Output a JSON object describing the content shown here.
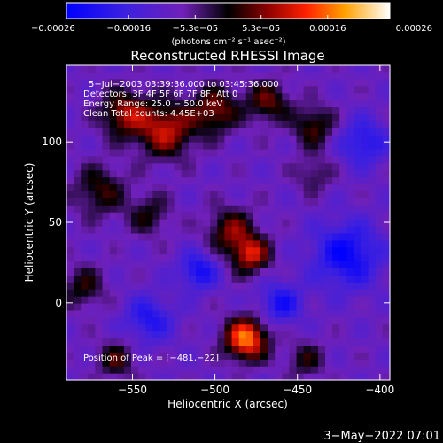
{
  "chart_data": {
    "type": "heatmap",
    "title": "Reconstructed RHESSI Image",
    "xlabel": "Heliocentric X (arcsec)",
    "ylabel": "Heliocentric Y (arcsec)",
    "xlim": [
      -590,
      -394
    ],
    "ylim": [
      -48,
      148
    ],
    "xticks": [
      -550,
      -500,
      -450,
      -400
    ],
    "xtick_labels": [
      "−550",
      "−500",
      "−450",
      "−400"
    ],
    "yticks": [
      0,
      50,
      100
    ],
    "ytick_labels": [
      "0",
      "50",
      "100"
    ],
    "colorbar": {
      "range": [
        -0.00026,
        0.00026
      ],
      "ticks": [
        -0.00026,
        -0.00016,
        -5.3e-05,
        5.3e-05,
        0.00016,
        0.00026
      ],
      "tick_labels": [
        "−0.00026",
        "−0.00016",
        "−5.3e−05",
        "5.3e−05",
        "0.00016",
        "0.00026"
      ],
      "unit_label": "(photons cm⁻² s⁻¹ asec⁻²)"
    },
    "annotations": [
      "5−Jul−2003 03:39:36.000 to 03:45:36.000",
      "Detectors: 3F 4F 5F 6F 7F 8F, Att 0",
      "Energy Range: 25.0 − 50.0 keV",
      "Clean    Total counts: 4.45E+03"
    ],
    "peak_label": "Position of Peak = [−481,−22]",
    "peak": [
      -481,
      -22
    ],
    "grid": false,
    "sources": [
      {
        "x": -481,
        "y": -22,
        "sigma": 9,
        "amp": 0.00026
      },
      {
        "x": -478,
        "y": 30,
        "sigma": 8,
        "amp": 0.00018
      },
      {
        "x": -490,
        "y": 45,
        "sigma": 10,
        "amp": 0.00014
      },
      {
        "x": -530,
        "y": 108,
        "sigma": 12,
        "amp": 0.00018
      },
      {
        "x": -555,
        "y": 118,
        "sigma": 10,
        "amp": 0.00016
      },
      {
        "x": -500,
        "y": 120,
        "sigma": 10,
        "amp": 0.00015
      },
      {
        "x": -468,
        "y": 125,
        "sigma": 9,
        "amp": 0.00013
      },
      {
        "x": -440,
        "y": 110,
        "sigma": 9,
        "amp": 0.00012
      },
      {
        "x": -570,
        "y": 70,
        "sigma": 11,
        "amp": 0.00011
      },
      {
        "x": -540,
        "y": 55,
        "sigma": 9,
        "amp": 9e-05
      },
      {
        "x": -580,
        "y": 10,
        "sigma": 9,
        "amp": 0.0001
      },
      {
        "x": -560,
        "y": -35,
        "sigma": 8,
        "amp": 0.00011
      },
      {
        "x": -445,
        "y": -35,
        "sigma": 8,
        "amp": 9e-05
      },
      {
        "x": -440,
        "y": 80,
        "sigma": 8,
        "amp": 7e-05
      },
      {
        "x": -510,
        "y": 20,
        "sigma": 8,
        "amp": -0.00014
      },
      {
        "x": -420,
        "y": 30,
        "sigma": 14,
        "amp": -0.00016
      },
      {
        "x": -410,
        "y": 100,
        "sigma": 10,
        "amp": -0.00012
      },
      {
        "x": -540,
        "y": -10,
        "sigma": 10,
        "amp": -0.00012
      },
      {
        "x": -460,
        "y": 0,
        "sigma": 9,
        "amp": -0.00013
      }
    ]
  },
  "timestamp": "3−May−2022 07:01"
}
